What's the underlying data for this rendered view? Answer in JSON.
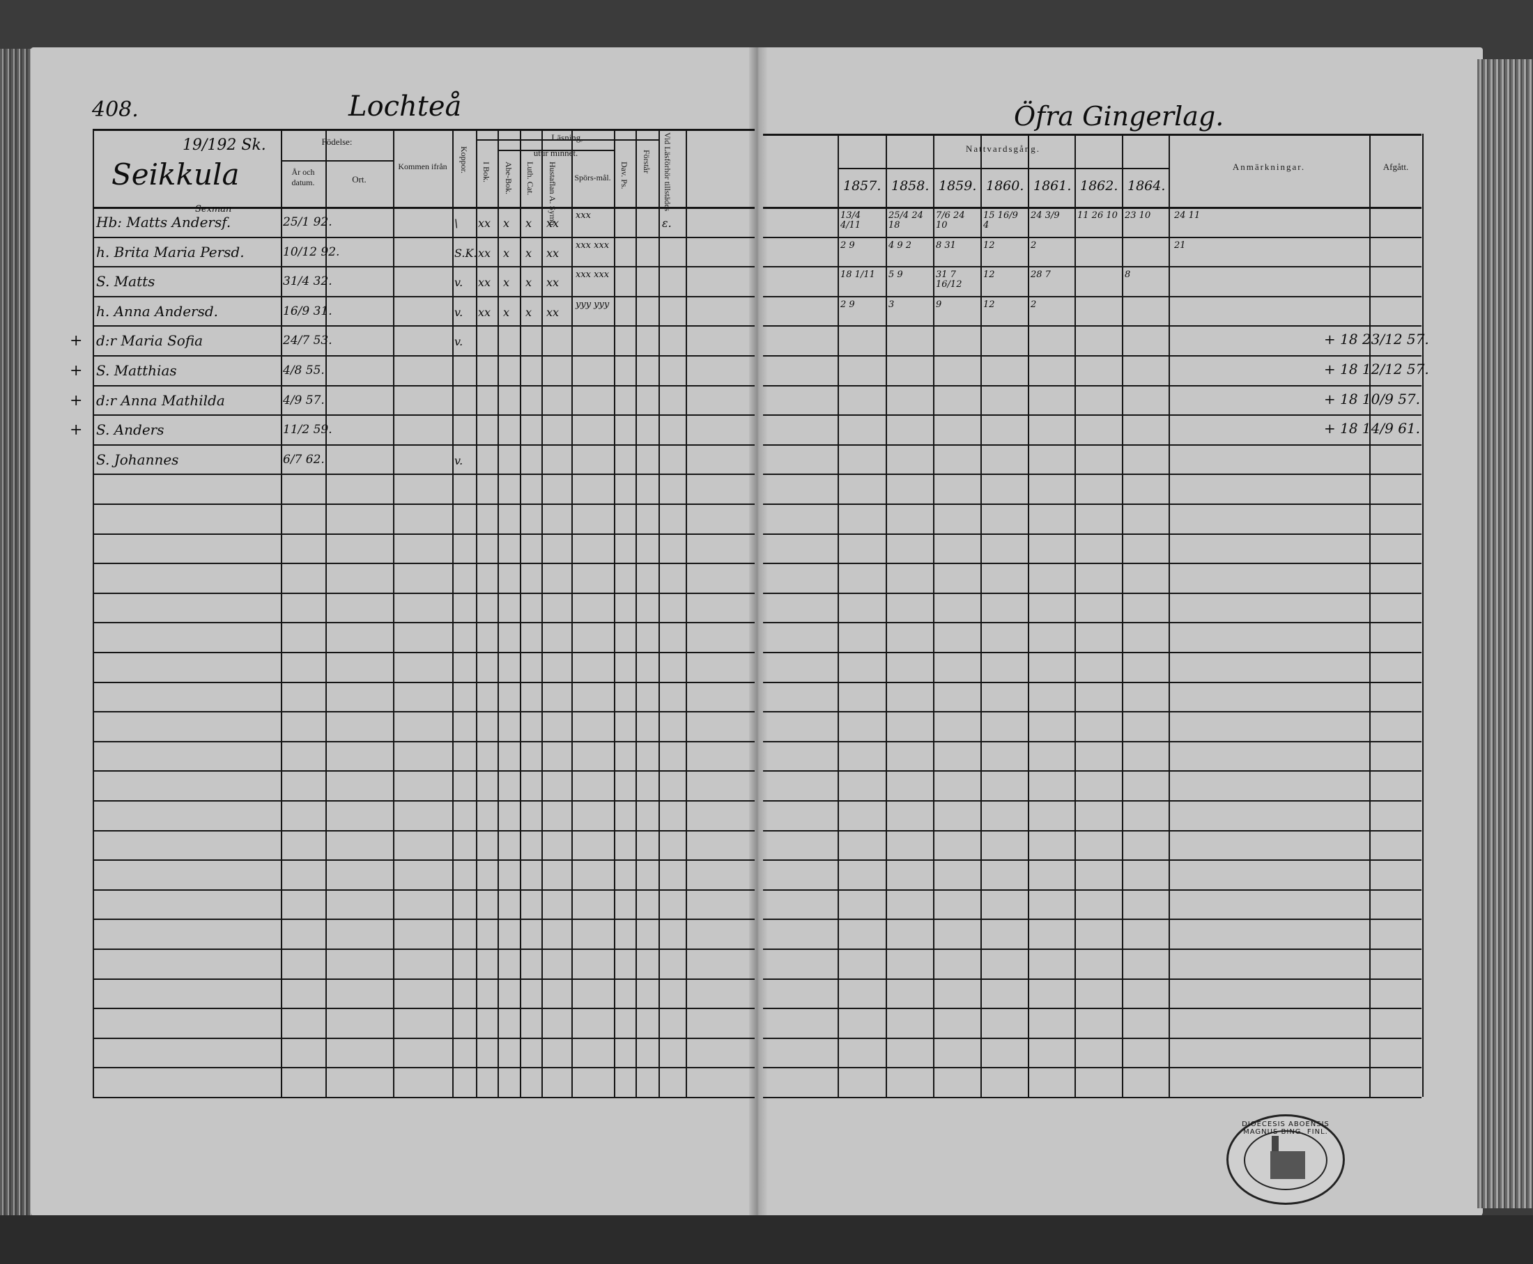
{
  "left_page": {
    "page_number": "408.",
    "village": "Lochteå",
    "homestead": "Seikkula",
    "homestead_ref": "19/192 Sk.",
    "headers": {
      "fodelse": "Födelse:",
      "ar_datum": "År och datum.",
      "ort": "Ort.",
      "kommen": "Kommen ifrån",
      "koppor": "Koppor.",
      "lasning": "Läsning,",
      "utur_minnet": "utur minnet.",
      "i_bok": "I Bok.",
      "abe_bok": "Abe-Bok.",
      "luth_cat": "Luth. Cat.",
      "hustaflan": "Hustaflan A. Symb.",
      "sporsmal": "Spörs-mål.",
      "dav_ps": "Dav. Ps.",
      "forstar": "Förstår",
      "vid_lasforhor": "Vid Läsförhör tillstädes"
    },
    "rows": [
      {
        "cross": "",
        "note": "Sexman",
        "name": "Hb: Matts Andersf.",
        "birth": "25/1 92.",
        "koppor": "\\",
        "i_bok": "xx",
        "abe": "x",
        "luth": "x",
        "hust": "xx",
        "spors": "xxx",
        "vid": "ε."
      },
      {
        "cross": "",
        "note": "",
        "name": "h. Brita Maria Persd.",
        "birth": "10/12 92.",
        "koppor": "S.K.",
        "i_bok": "xx",
        "abe": "x",
        "luth": "x",
        "hust": "xx",
        "spors": "xxx xxx",
        "vid": ""
      },
      {
        "cross": "",
        "note": "",
        "name": "S. Matts",
        "birth": "31/4 32.",
        "koppor": "v.",
        "i_bok": "xx",
        "abe": "x",
        "luth": "x",
        "hust": "xx",
        "spors": "xxx xxx",
        "vid": ""
      },
      {
        "cross": "",
        "note": "",
        "name": "h. Anna Andersd.",
        "birth": "16/9 31.",
        "koppor": "v.",
        "i_bok": "xx",
        "abe": "x",
        "luth": "x",
        "hust": "xx",
        "spors": "yyy yyy",
        "vid": ""
      },
      {
        "cross": "+",
        "note": "",
        "name": "d:r Maria Sofia",
        "birth": "24/7 53.",
        "koppor": "v.",
        "i_bok": "",
        "abe": "",
        "luth": "",
        "hust": "",
        "spors": "",
        "vid": ""
      },
      {
        "cross": "+",
        "note": "",
        "name": "S. Matthias",
        "birth": "4/8 55.",
        "koppor": "",
        "i_bok": "",
        "abe": "",
        "luth": "",
        "hust": "",
        "spors": "",
        "vid": ""
      },
      {
        "cross": "+",
        "note": "",
        "name": "d:r Anna Mathilda",
        "birth": "4/9 57.",
        "koppor": "",
        "i_bok": "",
        "abe": "",
        "luth": "",
        "hust": "",
        "spors": "",
        "vid": ""
      },
      {
        "cross": "+",
        "note": "",
        "name": "S. Anders",
        "birth": "11/2 59.",
        "koppor": "",
        "i_bok": "",
        "abe": "",
        "luth": "",
        "hust": "",
        "spors": "",
        "vid": ""
      },
      {
        "cross": "",
        "note": "",
        "name": "S. Johannes",
        "birth": "6/7 62.",
        "koppor": "v.",
        "i_bok": "",
        "abe": "",
        "luth": "",
        "hust": "",
        "spors": "",
        "vid": ""
      }
    ]
  },
  "right_page": {
    "village": "Öfra Gingerlag.",
    "headers": {
      "nattvardsgang": "Nattvardsgång.",
      "years": [
        "1857.",
        "1858.",
        "1859.",
        "1860.",
        "1861.",
        "1862.",
        "1864."
      ],
      "anmarkningar": "Anmärkningar.",
      "afgatt": "Afgått."
    },
    "communion": [
      [
        "13/4 4/11",
        "25/4 24 18",
        "7/6 24 10",
        "15 16/9 4",
        "24 3/9",
        "11 26 10",
        "23 10",
        "24 11"
      ],
      [
        "2 9",
        "4 9 2",
        "8 31",
        "12",
        "2",
        "",
        "",
        "21"
      ],
      [
        "18 1/11",
        "5 9",
        "31 7 16/12",
        "12",
        "28 7",
        "",
        "8",
        ""
      ],
      [
        "2 9",
        "3",
        "9",
        "12",
        "2",
        "",
        "",
        ""
      ]
    ],
    "afgatt": [
      "",
      "",
      "",
      "",
      "+ 18 23/12 57.",
      "+ 18 12/12 57.",
      "+ 18 10/9 57.",
      "+ 18 14/9 61.",
      ""
    ]
  },
  "stamp": {
    "text": "DIOECESIS ABOENSIS MAGNUS BING. FINL."
  }
}
